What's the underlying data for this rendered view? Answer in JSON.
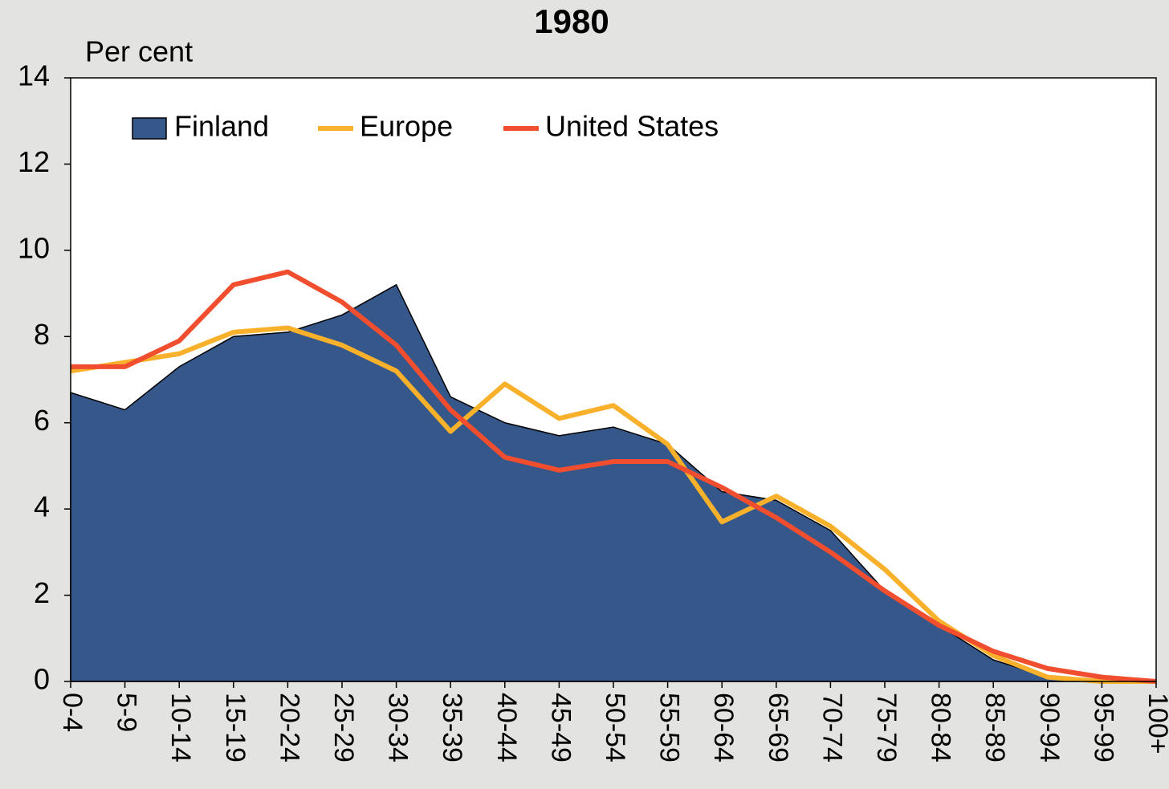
{
  "chart_data": {
    "type": "line",
    "title": "1980",
    "ylabel": "Per cent",
    "categories": [
      "0-4",
      "5-9",
      "10-14",
      "15-19",
      "20-24",
      "25-29",
      "30-34",
      "35-39",
      "40-44",
      "45-49",
      "50-54",
      "55-59",
      "60-64",
      "65-69",
      "70-74",
      "75-79",
      "80-84",
      "85-89",
      "90-94",
      "95-99",
      "100+"
    ],
    "series": [
      {
        "name": "Finland",
        "type": "area",
        "color": "#36578a",
        "values": [
          6.7,
          6.3,
          7.3,
          8.0,
          8.1,
          8.5,
          9.2,
          6.6,
          6.0,
          5.7,
          5.9,
          5.5,
          4.4,
          4.2,
          3.5,
          2.1,
          1.3,
          0.5,
          0.1,
          0.0,
          0.0
        ]
      },
      {
        "name": "Europe",
        "type": "line",
        "color": "#f9b02a",
        "values": [
          7.2,
          7.4,
          7.6,
          8.1,
          8.2,
          7.8,
          7.2,
          5.8,
          6.9,
          6.1,
          6.4,
          5.5,
          3.7,
          4.3,
          3.6,
          2.6,
          1.4,
          0.6,
          0.1,
          0.0,
          0.0
        ]
      },
      {
        "name": "United States",
        "type": "line",
        "color": "#f04e2e",
        "values": [
          7.3,
          7.3,
          7.9,
          9.2,
          9.5,
          8.8,
          7.8,
          6.3,
          5.2,
          4.9,
          5.1,
          5.1,
          4.5,
          3.8,
          3.0,
          2.1,
          1.3,
          0.7,
          0.3,
          0.1,
          0.0
        ]
      }
    ],
    "ylim": [
      0,
      14
    ],
    "yticks": [
      0,
      2,
      4,
      6,
      8,
      10,
      12,
      14
    ],
    "legend": "top"
  }
}
